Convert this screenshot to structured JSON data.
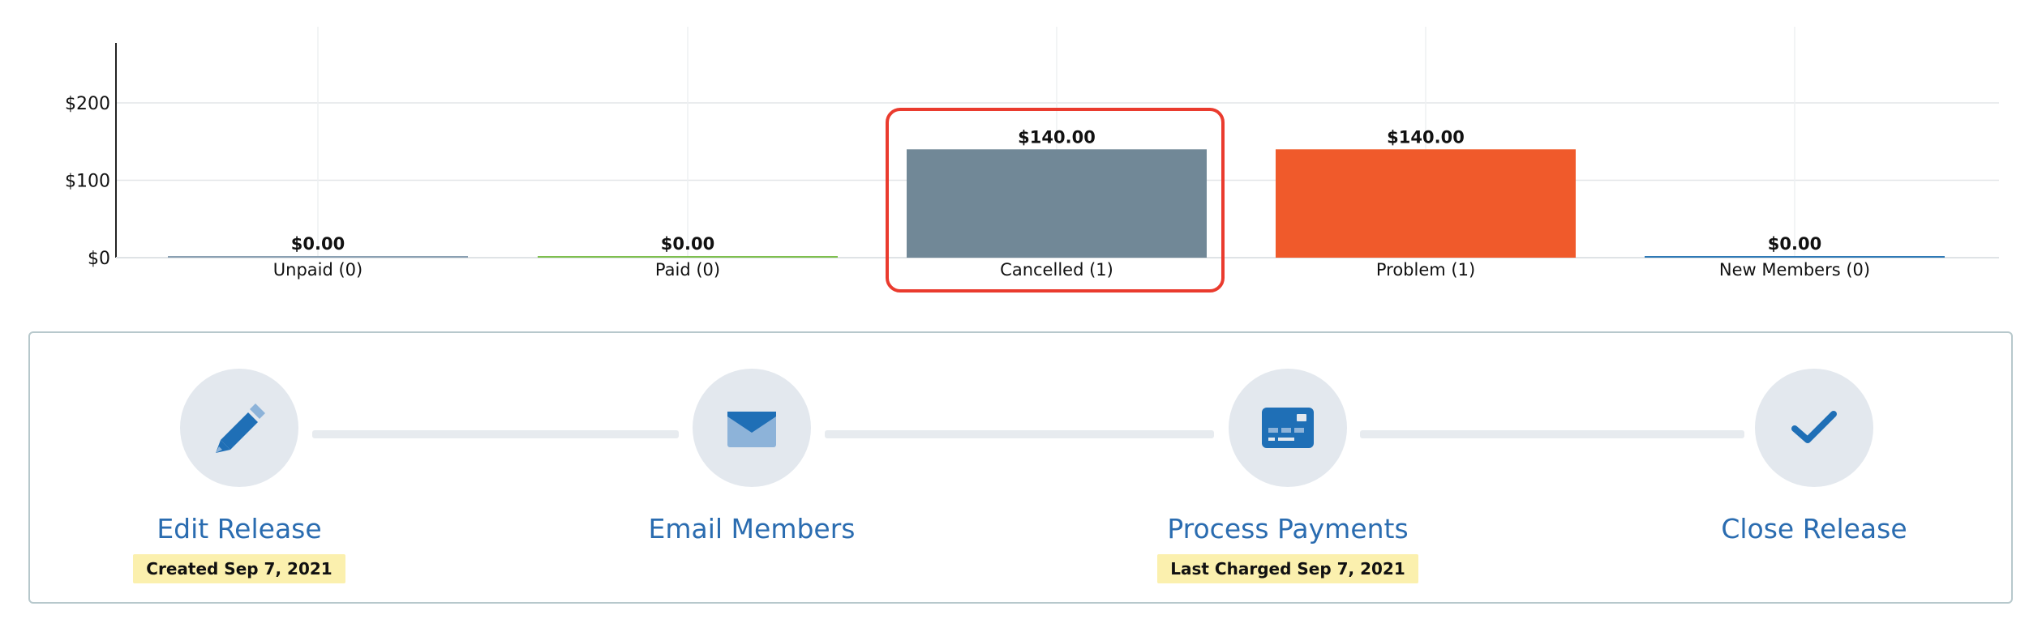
{
  "chart_data": {
    "type": "bar",
    "categories": [
      "Unpaid (0)",
      "Paid (0)",
      "Cancelled (1)",
      "Problem (1)",
      "New Members (0)"
    ],
    "values": [
      0,
      0,
      140,
      140,
      0
    ],
    "value_labels": [
      "$0.00",
      "$0.00",
      "$140.00",
      "$140.00",
      "$0.00"
    ],
    "colors": [
      "#8aa0b2",
      "#7ebf4f",
      "#718897",
      "#f05a2b",
      "#2f79b6"
    ],
    "yticks": [
      "$0",
      "$100",
      "$200"
    ],
    "ytick_values": [
      0,
      100,
      200
    ],
    "ylim": [
      0,
      280
    ],
    "grid": true,
    "highlighted_category": "Cancelled (1)"
  },
  "workflow": {
    "steps": [
      {
        "title": "Edit Release",
        "badge": "Created Sep 7, 2021",
        "icon": "pencil-icon"
      },
      {
        "title": "Email Members",
        "badge": "",
        "icon": "envelope-icon"
      },
      {
        "title": "Process Payments",
        "badge": "Last Charged Sep 7, 2021",
        "icon": "credit-card-icon"
      },
      {
        "title": "Close Release",
        "badge": "",
        "icon": "checkmark-icon"
      }
    ]
  },
  "colors": {
    "accent": "#2a6cb0",
    "icon": "#1f6fb6",
    "icon_light": "#8db3d9",
    "highlight_border": "#ea3b2e",
    "badge_bg": "#fbf0ae"
  }
}
